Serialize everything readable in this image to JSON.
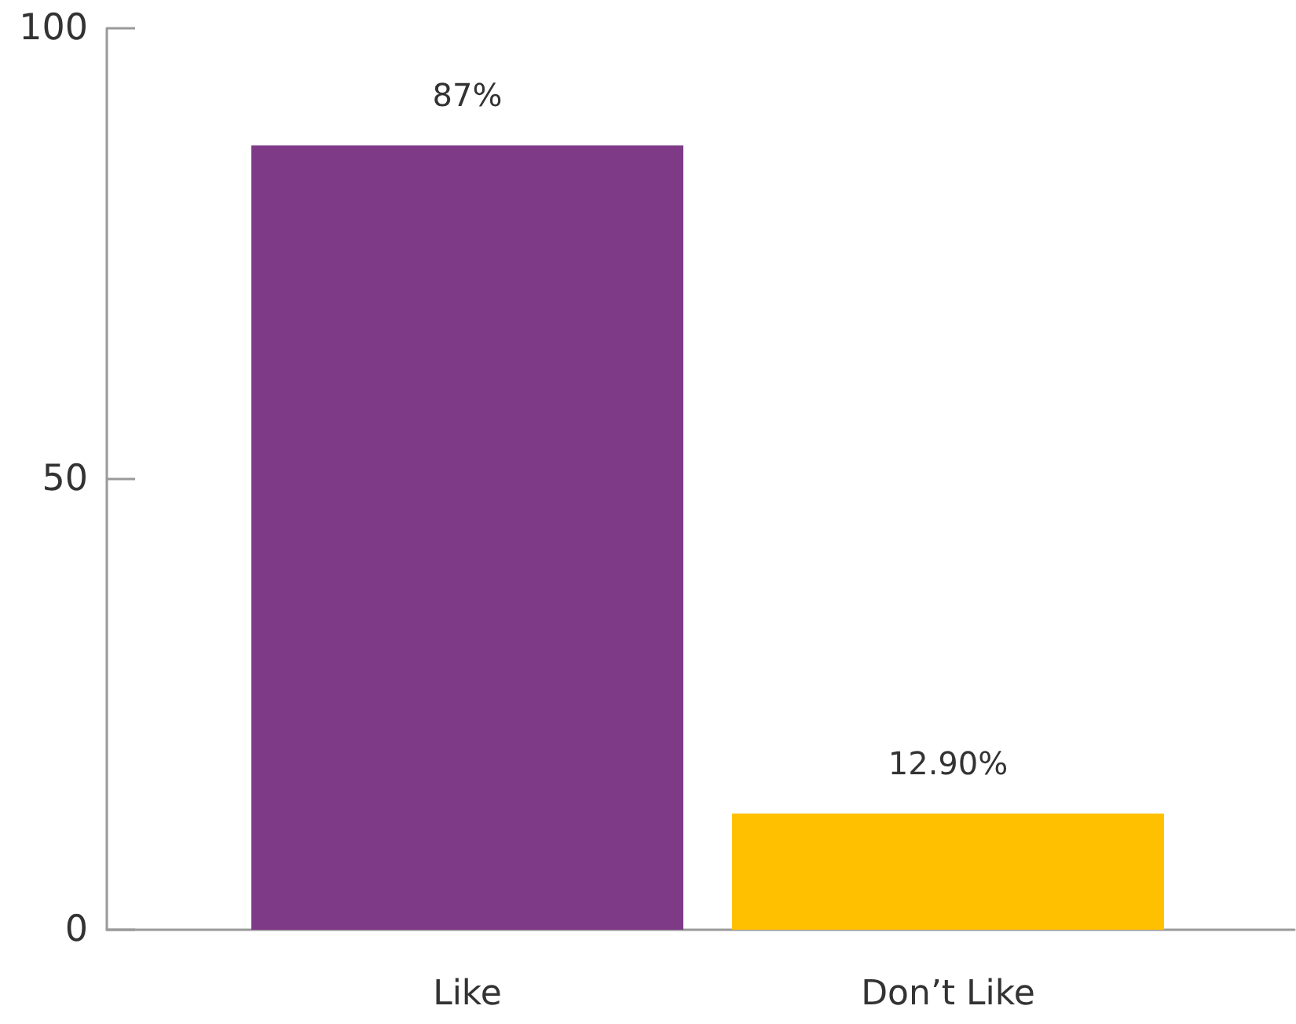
{
  "chart_data": {
    "type": "bar",
    "categories": [
      "Like",
      "Don’t Like"
    ],
    "values": [
      87,
      12.9
    ],
    "colors": [
      "#7e3a87",
      "#ffc000"
    ],
    "value_labels": [
      "87%",
      "12.90%"
    ],
    "ylim": [
      0,
      100
    ],
    "yticks": [
      0,
      50,
      100
    ]
  }
}
